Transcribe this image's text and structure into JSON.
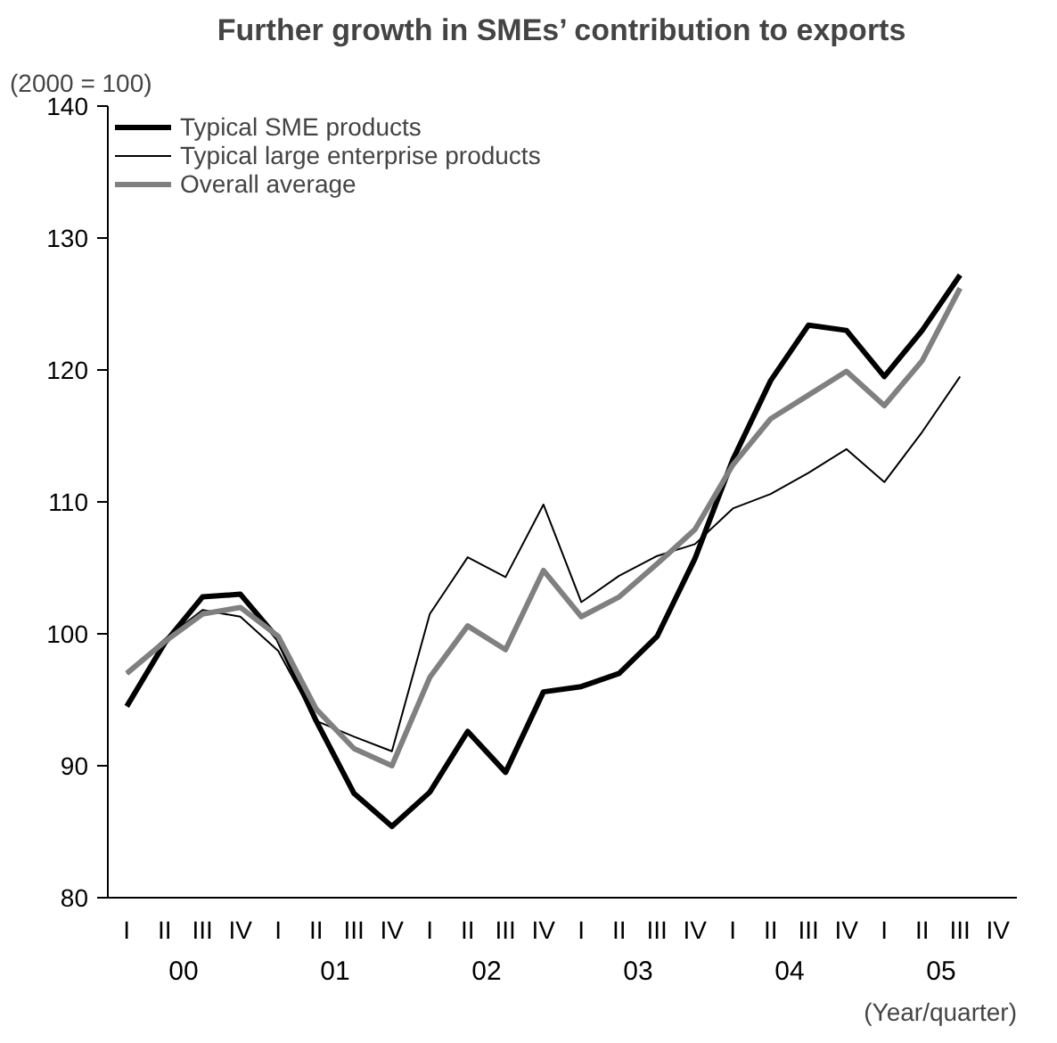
{
  "chart_data": {
    "type": "line",
    "title": "Further growth in SMEs’ contribution to exports",
    "ylabel": "(2000 = 100)",
    "xlabel": "(Year/quarter)",
    "categories": [
      "I",
      "II",
      "III",
      "IV",
      "I",
      "II",
      "III",
      "IV",
      "I",
      "II",
      "III",
      "IV",
      "I",
      "II",
      "III",
      "IV",
      "I",
      "II",
      "III",
      "IV",
      "I",
      "II",
      "III",
      "IV"
    ],
    "annotations": [
      "00",
      "01",
      "02",
      "03",
      "04",
      "05"
    ],
    "series": [
      {
        "name": "Typical SME products",
        "color": "#000000",
        "values": [
          94.5,
          99.3,
          102.8,
          103.0,
          99.6,
          93.4,
          87.9,
          85.4,
          88.0,
          92.6,
          89.5,
          95.6,
          96.0,
          97.0,
          99.8,
          105.7,
          113.2,
          119.2,
          123.4,
          123.0,
          119.5,
          123.0,
          127.2,
          null
        ]
      },
      {
        "name": "Typical large enterprise products",
        "color": "#000000",
        "values": [
          97.0,
          99.6,
          101.8,
          101.3,
          98.7,
          93.4,
          92.2,
          91.1,
          101.5,
          105.8,
          104.3,
          109.8,
          102.4,
          104.4,
          105.9,
          106.8,
          109.5,
          110.6,
          112.2,
          114.0,
          111.5,
          115.3,
          119.5,
          null
        ]
      },
      {
        "name": "Overall average",
        "color": "#808080",
        "values": [
          97.0,
          99.4,
          101.5,
          102.0,
          99.8,
          94.3,
          91.3,
          90.0,
          96.7,
          100.6,
          98.8,
          104.8,
          101.3,
          102.8,
          105.3,
          107.9,
          112.8,
          116.3,
          118.1,
          119.9,
          117.3,
          120.7,
          126.2,
          null
        ]
      }
    ],
    "ylim": [
      80,
      140
    ],
    "yticks": [
      80,
      90,
      100,
      110,
      120,
      130,
      140
    ],
    "grid": false,
    "legend": "top left",
    "marker": "none",
    "line_style": "solid"
  }
}
